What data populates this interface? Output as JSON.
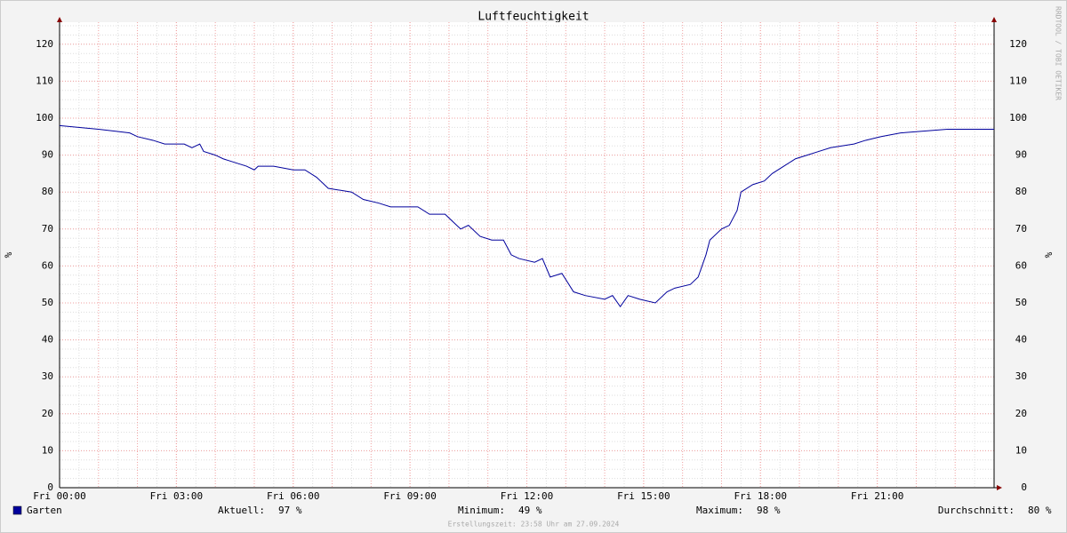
{
  "chart_data": {
    "type": "line",
    "title": "Luftfeuchtigkeit",
    "y_label": "%",
    "y2_label": "%",
    "x": [
      0,
      1.0,
      1.8,
      2.0,
      2.4,
      2.7,
      3.2,
      3.4,
      3.6,
      3.7,
      4.0,
      4.2,
      4.5,
      4.8,
      5.0,
      5.1,
      5.5,
      6.0,
      6.3,
      6.6,
      6.9,
      7.5,
      7.8,
      8.2,
      8.5,
      9.2,
      9.5,
      9.9,
      10.1,
      10.3,
      10.5,
      10.8,
      11.1,
      11.4,
      11.6,
      11.8,
      12.2,
      12.4,
      12.6,
      12.9,
      13.2,
      13.5,
      14.0,
      14.2,
      14.4,
      14.6,
      14.9,
      15.3,
      15.6,
      15.8,
      16.2,
      16.4,
      16.6,
      16.7,
      17.0,
      17.2,
      17.4,
      17.5,
      17.8,
      18.1,
      18.3,
      18.6,
      18.9,
      19.2,
      19.5,
      19.8,
      20.4,
      20.7,
      21.1,
      21.6,
      22.8,
      24.0
    ],
    "series": [
      {
        "name": "Garten",
        "color": "#00009c",
        "values": [
          98,
          97,
          96,
          95,
          94,
          93,
          93,
          92,
          93,
          91,
          90,
          89,
          88,
          87,
          86,
          87,
          87,
          86,
          86,
          84,
          81,
          80,
          78,
          77,
          76,
          76,
          74,
          74,
          72,
          70,
          71,
          68,
          67,
          67,
          63,
          62,
          61,
          62,
          57,
          58,
          53,
          52,
          51,
          52,
          49,
          52,
          51,
          50,
          53,
          54,
          55,
          57,
          63,
          67,
          70,
          71,
          75,
          80,
          82,
          83,
          85,
          87,
          89,
          90,
          91,
          92,
          93,
          94,
          95,
          96,
          97,
          97
        ]
      }
    ],
    "xlim": [
      0,
      24
    ],
    "xticks": [
      {
        "value": 0,
        "label": "Fri 00:00"
      },
      {
        "value": 3,
        "label": "Fri 03:00"
      },
      {
        "value": 6,
        "label": "Fri 06:00"
      },
      {
        "value": 9,
        "label": "Fri 09:00"
      },
      {
        "value": 12,
        "label": "Fri 12:00"
      },
      {
        "value": 15,
        "label": "Fri 15:00"
      },
      {
        "value": 18,
        "label": "Fri 18:00"
      },
      {
        "value": 21,
        "label": "Fri 21:00"
      }
    ],
    "ylim": [
      0,
      125
    ],
    "yticks": [
      0,
      10,
      20,
      30,
      40,
      50,
      60,
      70,
      80,
      90,
      100,
      110,
      120
    ],
    "grid": true,
    "stats": [
      {
        "label": "Aktuell:",
        "value": "97 %"
      },
      {
        "label": "Minimum:",
        "value": "49 %"
      },
      {
        "label": "Maximum:",
        "value": "98 %"
      },
      {
        "label": "Durchschnitt:",
        "value": "80 %"
      }
    ],
    "footer": "Erstellungszeit: 23:58 Uhr am 27.09.2024",
    "watermark": "RRDTOOL / TOBI OETIKER"
  }
}
